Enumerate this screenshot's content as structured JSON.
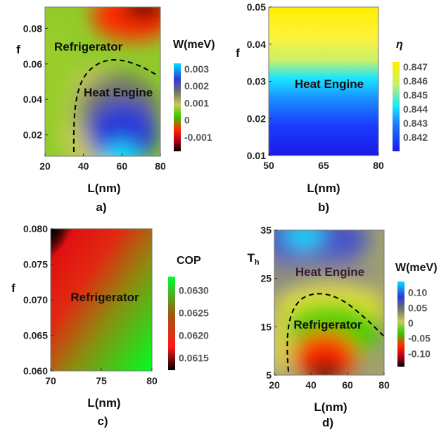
{
  "chart_data": [
    {
      "type": "heatmap",
      "panel_label": "a)",
      "xlabel": "L(nm)",
      "ylabel": "f",
      "x_ticks": [
        "20",
        "40",
        "60",
        "80"
      ],
      "y_ticks": [
        "0.02",
        "0.04",
        "0.06",
        "0.08"
      ],
      "xlim": [
        20,
        80
      ],
      "ylim": [
        0.008,
        0.092
      ],
      "colorbar_title": "W(meV)",
      "colorbar_ticks": [
        "0.003",
        "0.002",
        "0.001",
        "0",
        "-0.001"
      ],
      "colorbar_range": [
        -0.0015,
        0.0032
      ],
      "region_labels": [
        "Refrigerator",
        "Heat Engine"
      ],
      "boundary_dashed": true,
      "grid_values_meV": [
        [
          0.0004,
          0.0002,
          -0.0006,
          -0.0012,
          -0.0009
        ],
        [
          0.0004,
          0.0003,
          -0.0001,
          -0.0004,
          -0.0002
        ],
        [
          0.0003,
          0.0003,
          0.0001,
          0.0003,
          0.0004
        ],
        [
          0.0003,
          0.0001,
          0.0014,
          0.0014,
          0.0012
        ],
        [
          0.0002,
          0.0004,
          0.0019,
          0.0019,
          0.0018
        ],
        [
          0.0002,
          0.0007,
          0.0026,
          0.0023,
          0.002
        ]
      ]
    },
    {
      "type": "heatmap",
      "panel_label": "b)",
      "xlabel": "L(nm)",
      "ylabel": "f",
      "x_ticks": [
        "50",
        "65",
        "80"
      ],
      "y_ticks": [
        "0.01",
        "0.02",
        "0.03",
        "0.04",
        "0.05"
      ],
      "xlim": [
        50,
        80
      ],
      "ylim": [
        0.01,
        0.05
      ],
      "colorbar_title": "η",
      "colorbar_ticks": [
        "0.847",
        "0.846",
        "0.845",
        "0.844",
        "0.843",
        "0.842"
      ],
      "colorbar_range": [
        0.8415,
        0.8472
      ],
      "region_labels": [
        "Heat Engine"
      ],
      "gradient_by_f": [
        {
          "f": 0.05,
          "eta": 0.8472
        },
        {
          "f": 0.04,
          "eta": 0.8466
        },
        {
          "f": 0.033,
          "eta": 0.8452
        },
        {
          "f": 0.028,
          "eta": 0.8443
        },
        {
          "f": 0.02,
          "eta": 0.8425
        },
        {
          "f": 0.01,
          "eta": 0.8416
        }
      ]
    },
    {
      "type": "heatmap",
      "panel_label": "c)",
      "xlabel": "L(nm)",
      "ylabel": "f",
      "x_ticks": [
        "70",
        "75",
        "80"
      ],
      "y_ticks": [
        "0.060",
        "0.065",
        "0.070",
        "0.075",
        "0.080"
      ],
      "xlim": [
        70,
        80
      ],
      "ylim": [
        0.06,
        0.08
      ],
      "colorbar_title": "COP",
      "colorbar_ticks": [
        "0.0630",
        "0.0625",
        "0.0620",
        "0.0615"
      ],
      "colorbar_range": [
        0.0613,
        0.0632
      ],
      "region_labels": [
        "Refrigerator"
      ],
      "corner_values": {
        "top_left": 0.0613,
        "top_right": 0.0621,
        "bottom_left": 0.0628,
        "bottom_right": 0.0631
      }
    },
    {
      "type": "heatmap",
      "panel_label": "d)",
      "xlabel": "L(nm)",
      "ylabel": "T_h",
      "x_ticks": [
        "20",
        "40",
        "60",
        "80"
      ],
      "y_ticks": [
        "5",
        "15",
        "25",
        "35"
      ],
      "xlim": [
        20,
        80
      ],
      "ylim": [
        5,
        35
      ],
      "colorbar_title": "W(meV)",
      "colorbar_ticks": [
        "0.10",
        "0.05",
        "0",
        "-0.05",
        "-0.10"
      ],
      "colorbar_range": [
        -0.12,
        0.12
      ],
      "region_labels": [
        "Heat Engine",
        "Refrigerator"
      ],
      "boundary_dashed": true,
      "grid_values_meV": [
        [
          0.05,
          0.1,
          0.07,
          0.05,
          0.05
        ],
        [
          0.03,
          0.05,
          0.04,
          0.03,
          0.03
        ],
        [
          0.01,
          0.01,
          0.0,
          0.0,
          0.01
        ],
        [
          0.0,
          -0.02,
          -0.03,
          -0.02,
          0.0
        ],
        [
          0.0,
          -0.05,
          -0.09,
          -0.05,
          -0.03
        ],
        [
          0.0,
          -0.07,
          -0.12,
          -0.08,
          -0.05
        ]
      ]
    }
  ]
}
